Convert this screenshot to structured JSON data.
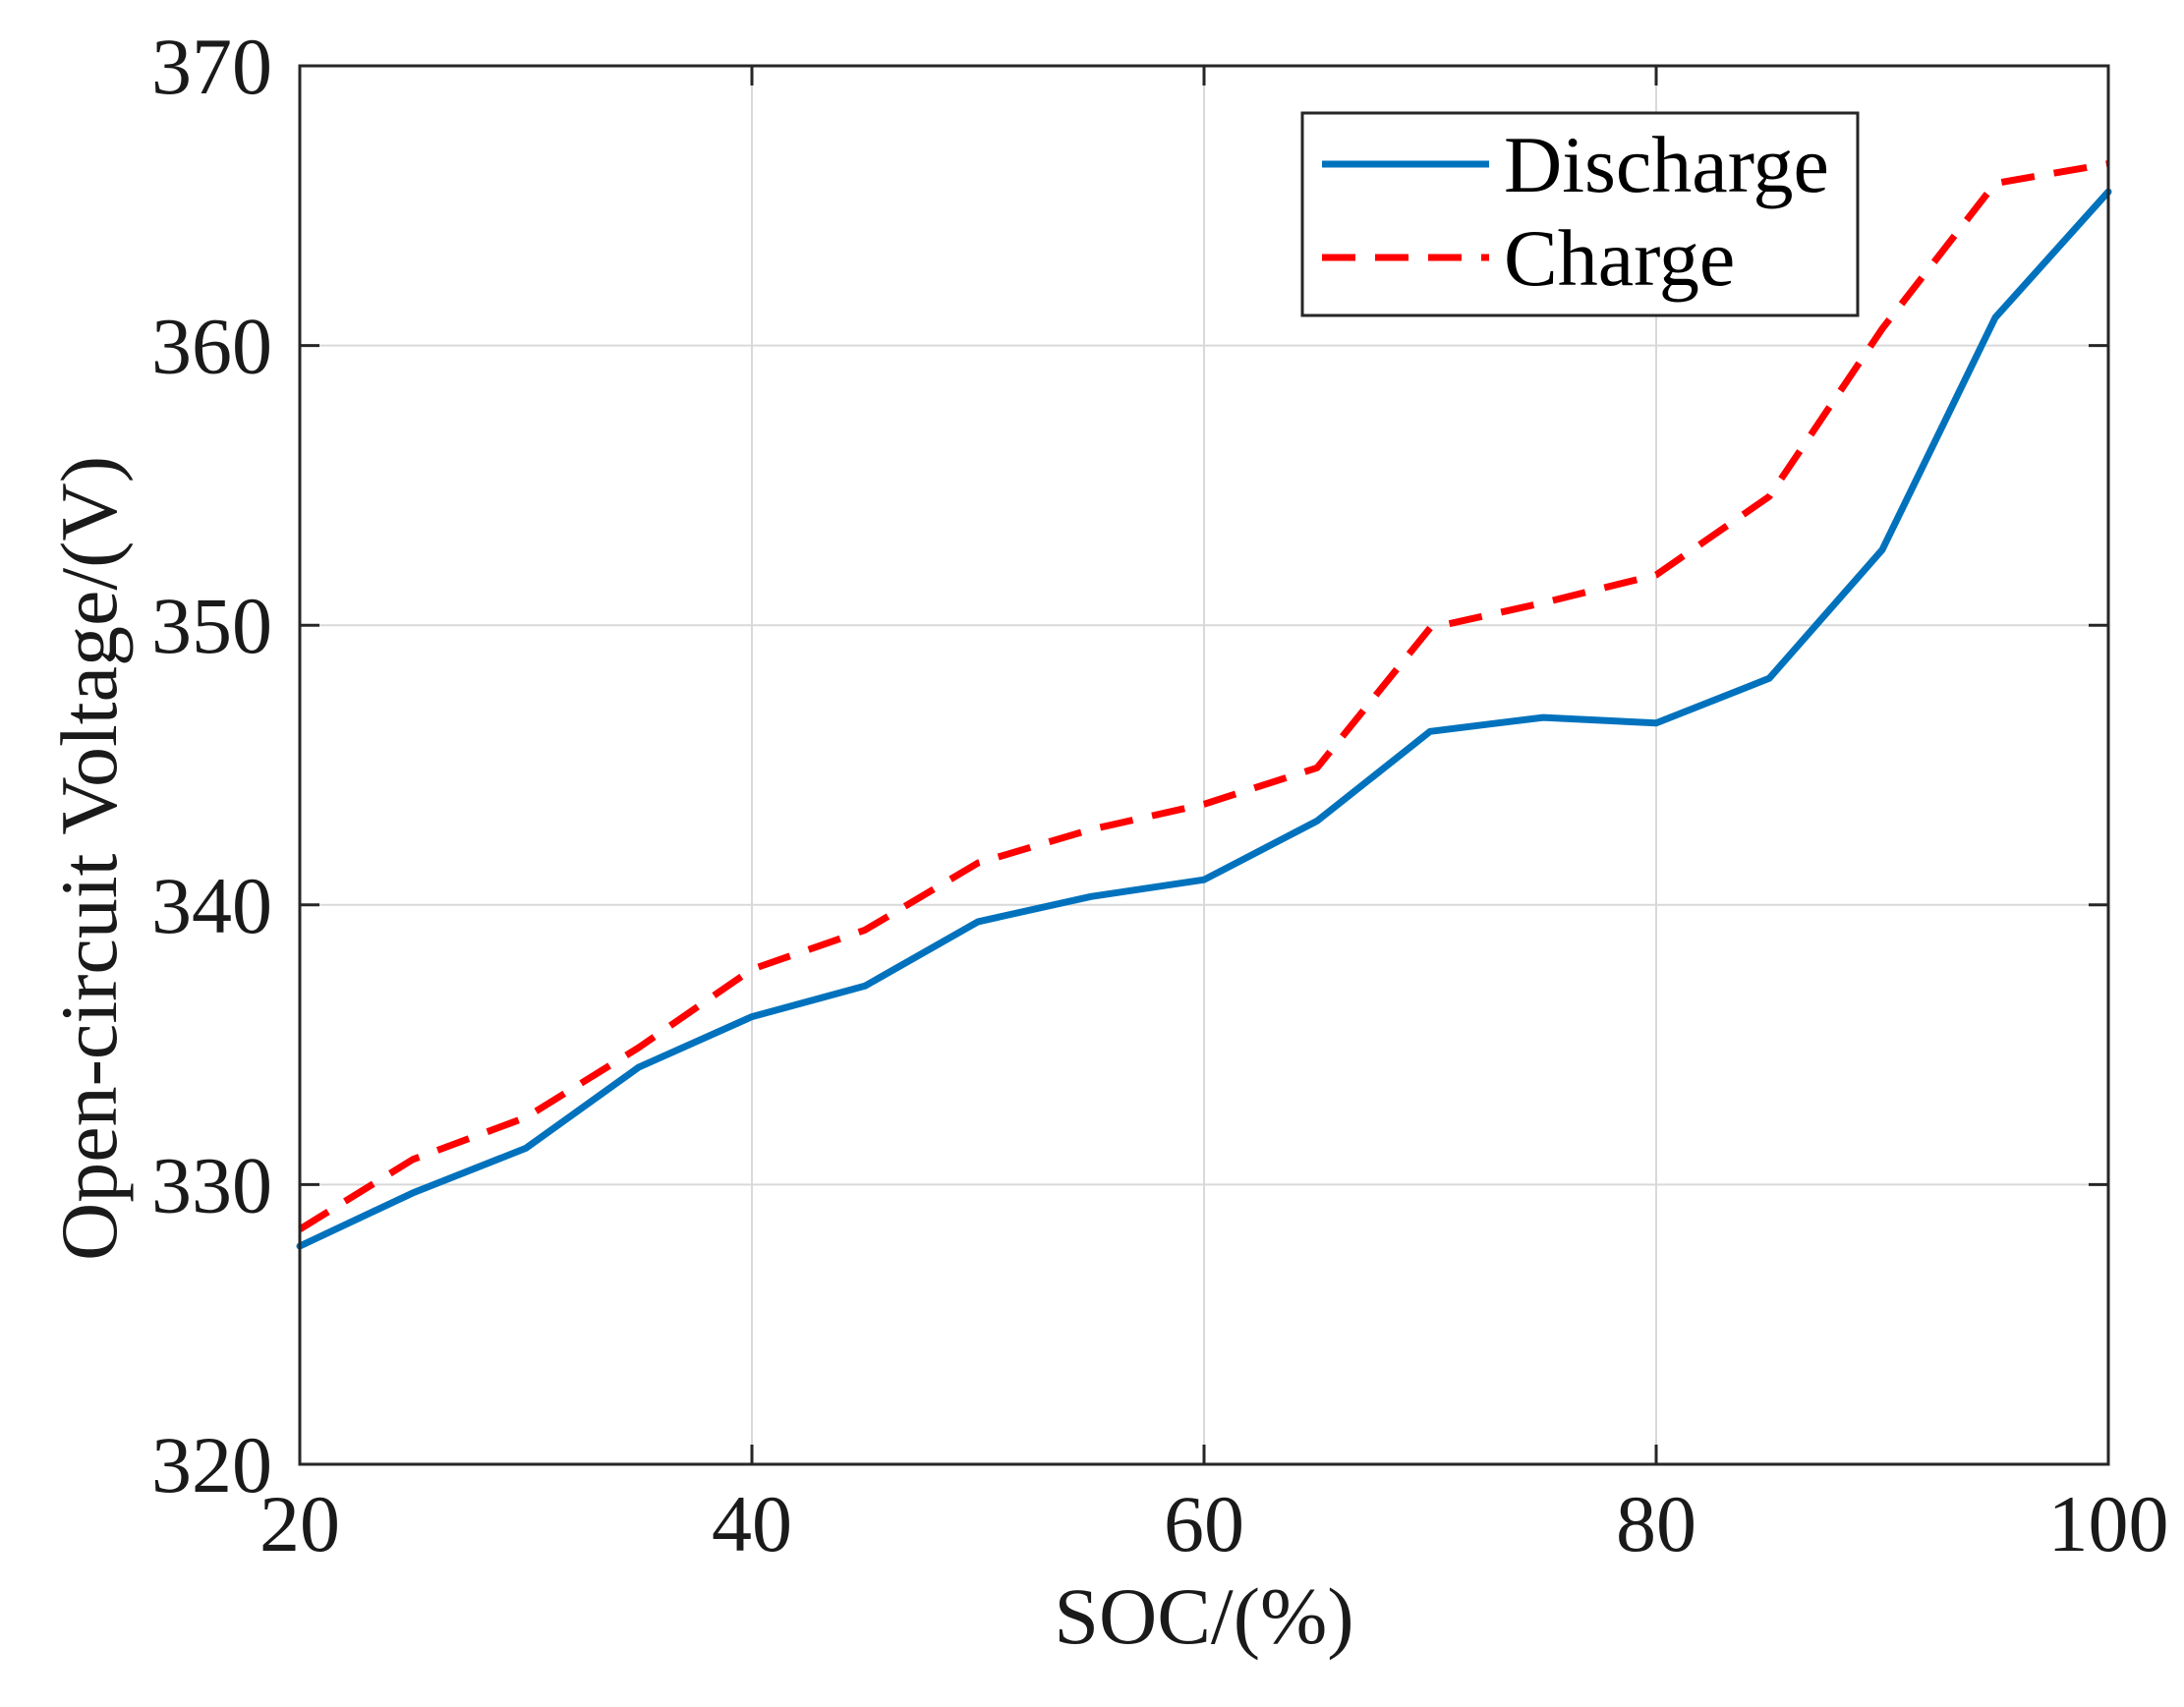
{
  "chart_data": {
    "type": "line",
    "title": "",
    "xlabel": "SOC/(%)",
    "ylabel": "Open-circuit Voltage/(V)",
    "xlim": [
      20,
      100
    ],
    "ylim": [
      320,
      370
    ],
    "xticks": [
      20,
      40,
      60,
      80,
      100
    ],
    "yticks": [
      320,
      330,
      340,
      350,
      360,
      370
    ],
    "grid": true,
    "legend_position": "top-right",
    "x": [
      20,
      25,
      30,
      35,
      40,
      45,
      50,
      55,
      60,
      65,
      70,
      75,
      80,
      85,
      90,
      95,
      100
    ],
    "series": [
      {
        "name": "Discharge",
        "color": "#0072BD",
        "style": "solid",
        "values": [
          327.8,
          329.7,
          331.3,
          334.2,
          336.0,
          337.1,
          339.4,
          340.3,
          340.9,
          343.0,
          346.2,
          346.7,
          346.5,
          348.1,
          352.7,
          361.0,
          365.5
        ]
      },
      {
        "name": "Charge",
        "color": "#FF0000",
        "style": "dashed",
        "values": [
          328.4,
          330.9,
          332.4,
          334.9,
          337.7,
          339.1,
          341.5,
          342.7,
          343.6,
          344.9,
          349.9,
          350.8,
          351.8,
          354.6,
          360.6,
          365.8,
          366.5
        ]
      }
    ]
  }
}
